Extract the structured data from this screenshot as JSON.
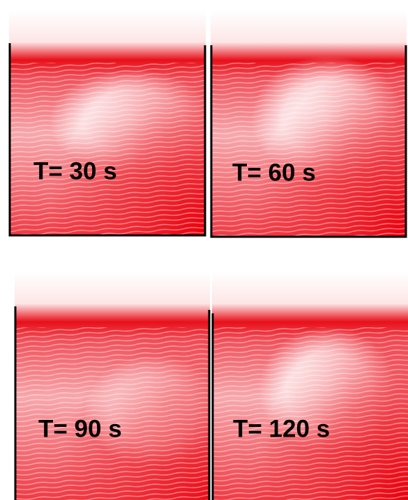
{
  "panels": [
    {
      "label": "T= 30 s"
    },
    {
      "label": "T= 60 s"
    },
    {
      "label": "T= 90 s"
    },
    {
      "label": "T= 120 s"
    }
  ]
}
